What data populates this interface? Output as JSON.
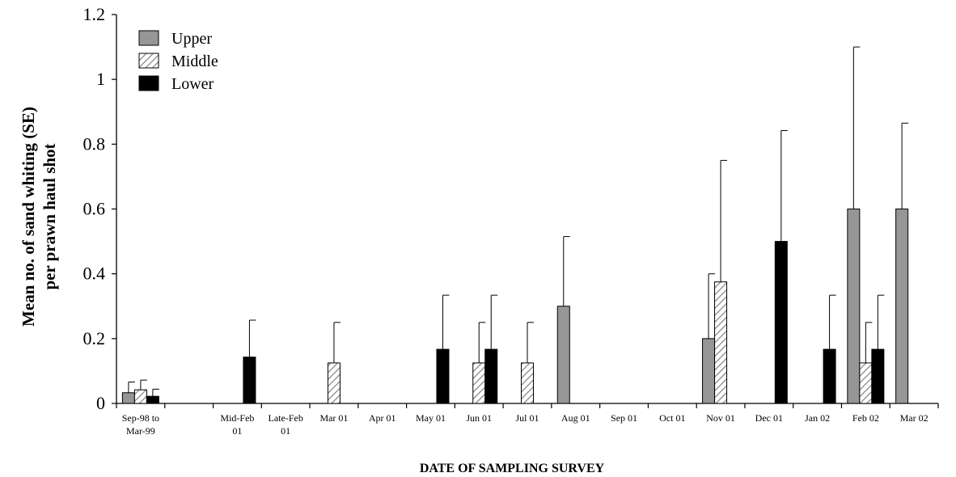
{
  "chart_data": {
    "type": "bar",
    "title": "",
    "xlabel": "DATE OF SAMPLING SURVEY",
    "ylabel": [
      "Mean no. of sand whiting (SE)",
      "per prawn haul shot"
    ],
    "ylim": [
      0,
      1.2
    ],
    "yticks": [
      "0",
      "0.2",
      "0.4",
      "0.6",
      "0.8",
      "1",
      "1.2"
    ],
    "ytick_values": [
      0,
      0.2,
      0.4,
      0.6,
      0.8,
      1,
      1.2
    ],
    "grid": false,
    "legend_position": "top-left",
    "categories": [
      [
        "Sep-98 to",
        "Mar-99"
      ],
      [
        ""
      ],
      [
        "Mid-Feb",
        "01"
      ],
      [
        "Late-Feb",
        "01"
      ],
      [
        "Mar 01"
      ],
      [
        "Apr 01"
      ],
      [
        "May 01"
      ],
      [
        "Jun 01"
      ],
      [
        "Jul 01"
      ],
      [
        "Aug 01"
      ],
      [
        "Sep 01"
      ],
      [
        "Oct 01"
      ],
      [
        "Nov 01"
      ],
      [
        "Dec 01"
      ],
      [
        "Jan 02"
      ],
      [
        "Feb 02"
      ],
      [
        "Mar 02"
      ]
    ],
    "series": [
      {
        "name": "Upper",
        "color": "#969696",
        "pattern": "solid",
        "values": [
          0.033,
          null,
          0,
          0,
          0,
          0,
          0,
          0,
          0,
          0.3,
          0,
          0,
          0.2,
          0,
          0,
          0.6,
          0.6
        ],
        "errors": [
          0.033,
          null,
          0,
          0,
          0,
          0,
          0,
          0,
          0,
          0.215,
          0,
          0,
          0.2,
          0,
          0,
          0.5,
          0.265
        ]
      },
      {
        "name": "Middle",
        "color": "#ffffff",
        "pattern": "diagonal-hatch",
        "values": [
          0.042,
          null,
          0,
          0,
          0.125,
          0,
          0,
          0.125,
          0.125,
          0,
          0,
          0,
          0.375,
          0,
          0,
          0.125,
          0
        ],
        "errors": [
          0.03,
          null,
          0,
          0,
          0.125,
          0,
          0,
          0.125,
          0.125,
          0,
          0,
          0,
          0.375,
          0,
          0,
          0.125,
          0
        ]
      },
      {
        "name": "Lower",
        "color": "#000000",
        "pattern": "solid",
        "values": [
          0.022,
          null,
          0.143,
          0,
          0,
          0,
          0.167,
          0.167,
          0,
          0,
          0,
          0,
          0,
          0.5,
          0.167,
          0.167,
          0
        ],
        "errors": [
          0.022,
          null,
          0.114,
          0,
          0,
          0,
          0.167,
          0.167,
          0,
          0,
          0,
          0,
          0,
          0.342,
          0.167,
          0.167,
          0
        ]
      }
    ]
  }
}
